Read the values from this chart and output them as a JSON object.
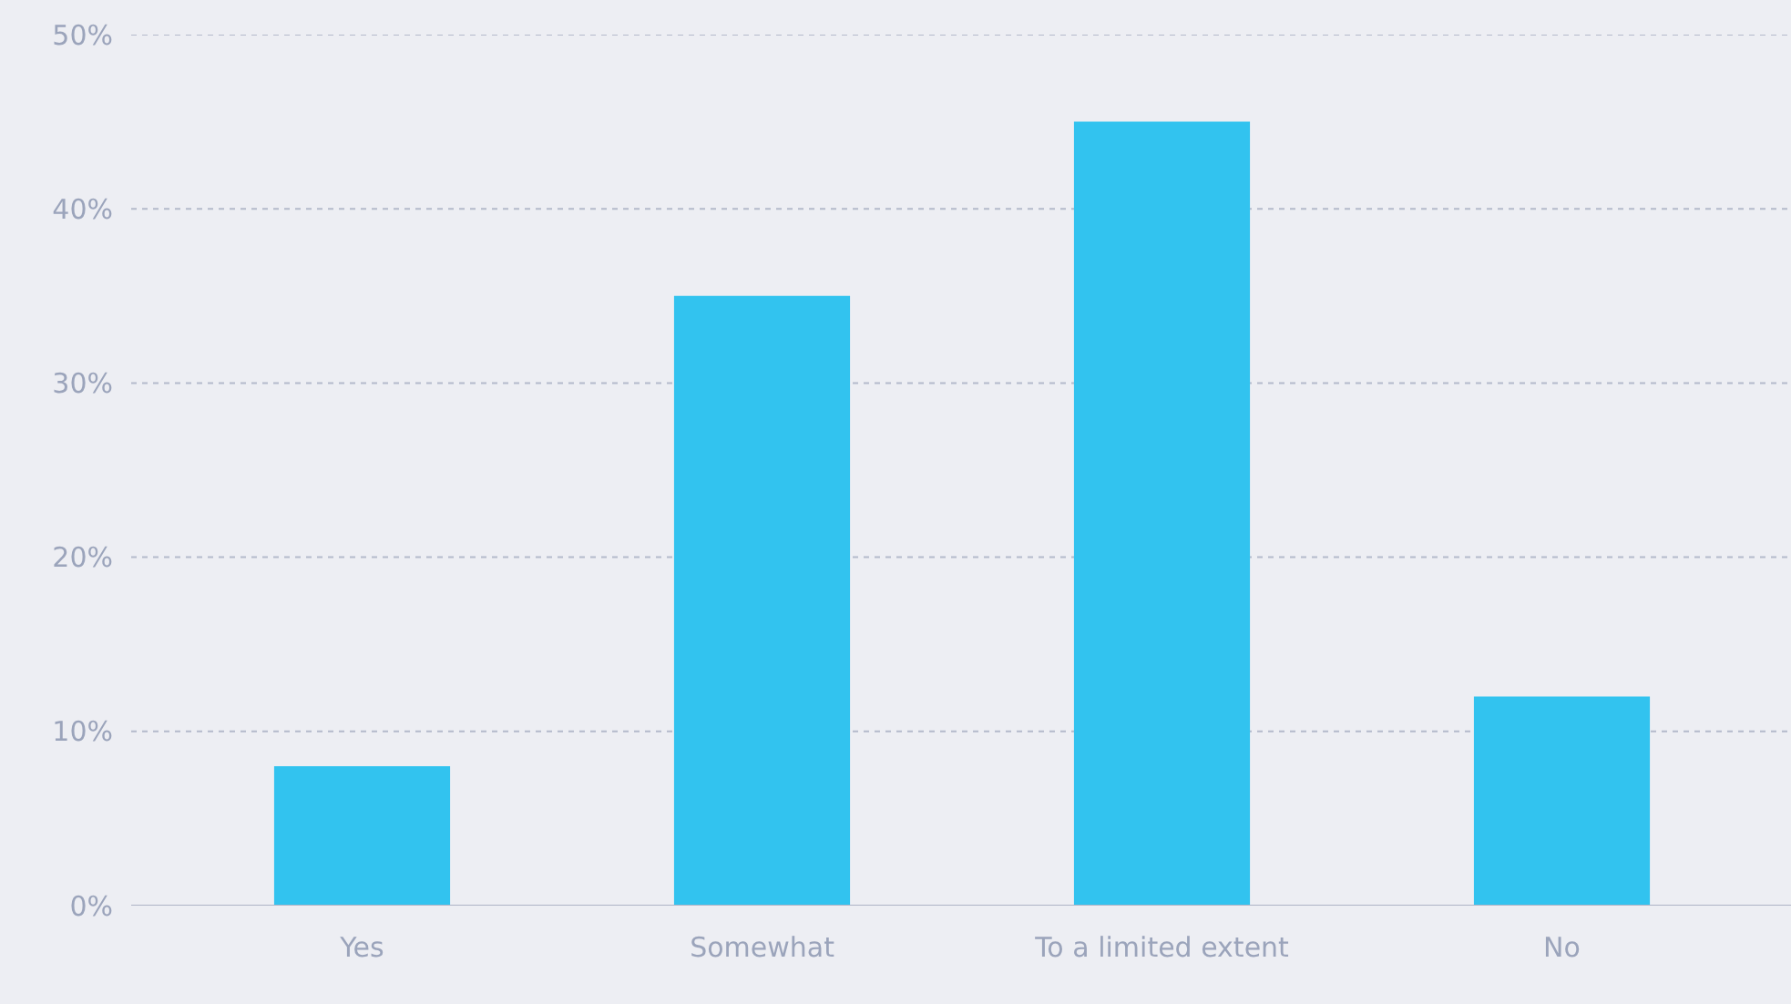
{
  "chart_data": {
    "type": "bar",
    "categories": [
      "Yes",
      "Somewhat",
      "To a limited extent",
      "No"
    ],
    "values": [
      8,
      35,
      45,
      12
    ],
    "color": "#32c3ef",
    "ylim": [
      0,
      50
    ],
    "yticks": [
      {
        "value": 0,
        "label": "0%"
      },
      {
        "value": 10,
        "label": "10%"
      },
      {
        "value": 20,
        "label": "20%"
      },
      {
        "value": 30,
        "label": "30%"
      },
      {
        "value": 40,
        "label": "40%"
      },
      {
        "value": 50,
        "label": "50%"
      }
    ],
    "grid": "y"
  }
}
